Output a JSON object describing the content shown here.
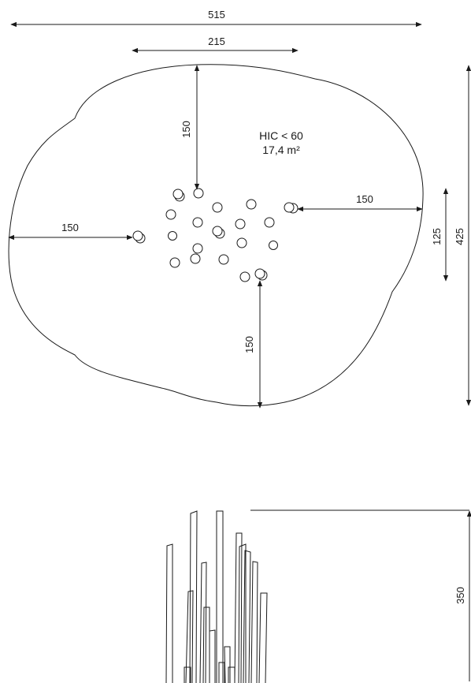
{
  "dimensions": {
    "overall_width": "515",
    "inner_width": "215",
    "top_clearance": "150",
    "left_clearance": "150",
    "right_clearance": "150",
    "bottom_clearance": "150",
    "cluster_depth": "125",
    "overall_depth": "425",
    "height": "350"
  },
  "notes": {
    "hic": "HIC < 60",
    "area": "17,4 m²"
  }
}
